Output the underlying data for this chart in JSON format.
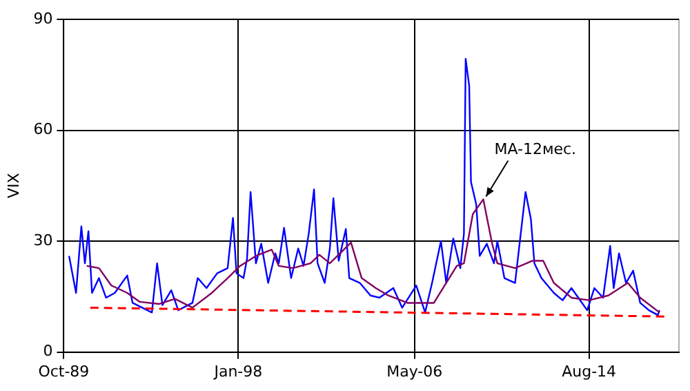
{
  "chart_data": {
    "type": "line",
    "ylabel": "VIX",
    "xlim": [
      "1989-10",
      "2018-11"
    ],
    "xticks": [
      {
        "value": "1989-10",
        "label": "Oct-89"
      },
      {
        "value": "1998-01",
        "label": "Jan-98"
      },
      {
        "value": "2006-05",
        "label": "May-06"
      },
      {
        "value": "2014-08",
        "label": "Aug-14"
      }
    ],
    "ylim": [
      0,
      90
    ],
    "yticks": [
      0,
      30,
      60,
      90
    ],
    "grid": true,
    "legend": false,
    "marker": "none",
    "annotations": [
      {
        "text": "MA-12мес.",
        "x": "2009-08",
        "y": 41.3
      }
    ],
    "series": [
      {
        "color": "#0000ff",
        "line_style": "solid",
        "x": [
          "1990-01",
          "1990-05",
          "1990-08",
          "1990-10",
          "1990-12",
          "1991-02",
          "1991-06",
          "1991-10",
          "1992-03",
          "1992-10",
          "1993-01",
          "1993-12",
          "1994-03",
          "1994-06",
          "1994-11",
          "1995-03",
          "1995-11",
          "1996-02",
          "1996-07",
          "1997-01",
          "1997-07",
          "1997-10",
          "1997-12",
          "1998-04",
          "1998-06",
          "1998-08",
          "1998-11",
          "1999-02",
          "1999-06",
          "1999-10",
          "1999-12",
          "2000-03",
          "2000-07",
          "2000-11",
          "2001-02",
          "2001-05",
          "2001-08",
          "2001-10",
          "2002-02",
          "2002-05",
          "2002-07",
          "2002-10",
          "2003-02",
          "2003-04",
          "2003-10",
          "2004-04",
          "2004-09",
          "2005-05",
          "2005-10",
          "2006-06",
          "2006-11",
          "2007-03",
          "2007-08",
          "2007-11",
          "2008-03",
          "2008-07",
          "2008-09",
          "2008-10",
          "2008-12",
          "2009-01",
          "2009-04",
          "2009-06",
          "2009-10",
          "2010-02",
          "2010-04",
          "2010-08",
          "2011-02",
          "2011-08",
          "2011-11",
          "2012-01",
          "2012-05",
          "2012-12",
          "2013-05",
          "2013-10",
          "2014-03",
          "2014-07",
          "2014-11",
          "2015-04",
          "2015-08",
          "2015-10",
          "2016-01",
          "2016-05",
          "2016-09",
          "2017-01",
          "2017-06",
          "2017-11",
          "2017-12"
        ],
        "values": [
          26,
          16,
          34,
          24,
          32.7,
          16,
          20,
          14.7,
          16,
          20.7,
          13.3,
          10.7,
          24,
          12.7,
          16.7,
          11.3,
          13.3,
          20,
          17.3,
          21.3,
          22.7,
          36.3,
          21.3,
          20,
          25.3,
          43.3,
          24,
          29.3,
          18.7,
          26.7,
          24,
          33.6,
          20,
          28,
          23.3,
          32,
          44,
          24,
          18.7,
          28,
          41.6,
          24.7,
          33.3,
          20,
          18.7,
          15.3,
          14.7,
          17.3,
          12,
          18,
          10.7,
          18.7,
          30,
          18.7,
          30.7,
          22.7,
          32,
          79.3,
          72,
          46,
          40,
          26,
          29.3,
          24,
          30,
          20,
          18.7,
          43.3,
          36,
          24,
          20,
          16,
          14,
          17.3,
          14,
          11.3,
          17.3,
          14.7,
          28.7,
          17.3,
          26.7,
          18.7,
          22,
          13.3,
          11.3,
          10,
          11.3
        ]
      },
      {
        "color": "#800060",
        "line_style": "solid",
        "x": [
          "1990-11",
          "1991-06",
          "1992-01",
          "1992-10",
          "1993-05",
          "1994-04",
          "1995-01",
          "1995-11",
          "1996-10",
          "1997-07",
          "1998-02",
          "1998-11",
          "1999-08",
          "1999-12",
          "2000-08",
          "2001-06",
          "2001-11",
          "2002-05",
          "2003-05",
          "2003-11",
          "2004-07",
          "2005-02",
          "2006-01",
          "2007-04",
          "2008-05",
          "2008-09",
          "2009-02",
          "2009-08",
          "2010-01",
          "2010-04",
          "2011-02",
          "2011-12",
          "2012-06",
          "2012-12",
          "2013-10",
          "2014-08",
          "2015-07",
          "2016-06",
          "2017-01",
          "2017-12"
        ],
        "values": [
          23.3,
          22.7,
          18,
          16,
          13.6,
          13,
          14.4,
          12,
          16,
          20,
          23.3,
          26,
          27.7,
          23.3,
          22.7,
          24,
          26.3,
          24,
          29.6,
          20,
          17.3,
          15.3,
          13.3,
          13.3,
          23.3,
          24,
          37.3,
          41.3,
          29.3,
          24,
          22.7,
          24.7,
          24.7,
          18.7,
          14.7,
          14,
          15.3,
          18.7,
          14.7,
          10.7
        ]
      },
      {
        "type": "line",
        "color": "#ff0000",
        "line_style": "dashed",
        "x": [
          "1991-01",
          "2018-04"
        ],
        "values": [
          12,
          9.6
        ]
      }
    ]
  }
}
